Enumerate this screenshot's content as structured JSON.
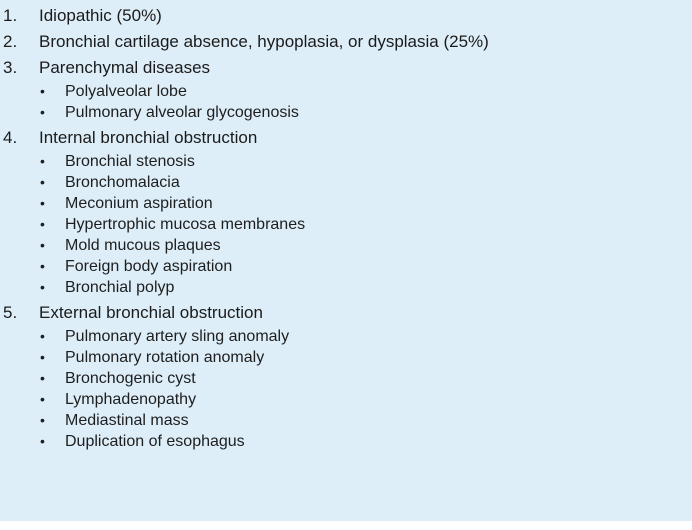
{
  "items": [
    {
      "number": "1.",
      "text": "Idiopathic (50%)",
      "subitems": []
    },
    {
      "number": "2.",
      "text": "Bronchial cartilage absence, hypoplasia, or dysplasia (25%)",
      "subitems": []
    },
    {
      "number": "3.",
      "text": "Parenchymal diseases",
      "subitems": [
        "Polyalveolar lobe",
        "Pulmonary alveolar glycogenosis"
      ]
    },
    {
      "number": "4.",
      "text": "Internal bronchial obstruction",
      "subitems": [
        "Bronchial stenosis",
        "Bronchomalacia",
        "Meconium aspiration",
        "Hypertrophic mucosa membranes",
        "Mold mucous plaques",
        "Foreign body aspiration",
        "Bronchial polyp"
      ]
    },
    {
      "number": "5.",
      "text": "External bronchial obstruction",
      "subitems": [
        "Pulmonary artery sling anomaly",
        "Pulmonary rotation anomaly",
        "Bronchogenic cyst",
        "Lymphadenopathy",
        "Mediastinal mass",
        "Duplication of esophagus"
      ]
    }
  ],
  "bullet_glyph": "•",
  "colors": {
    "panel_background": "#ddeef8",
    "text": "#1b1b1b"
  }
}
